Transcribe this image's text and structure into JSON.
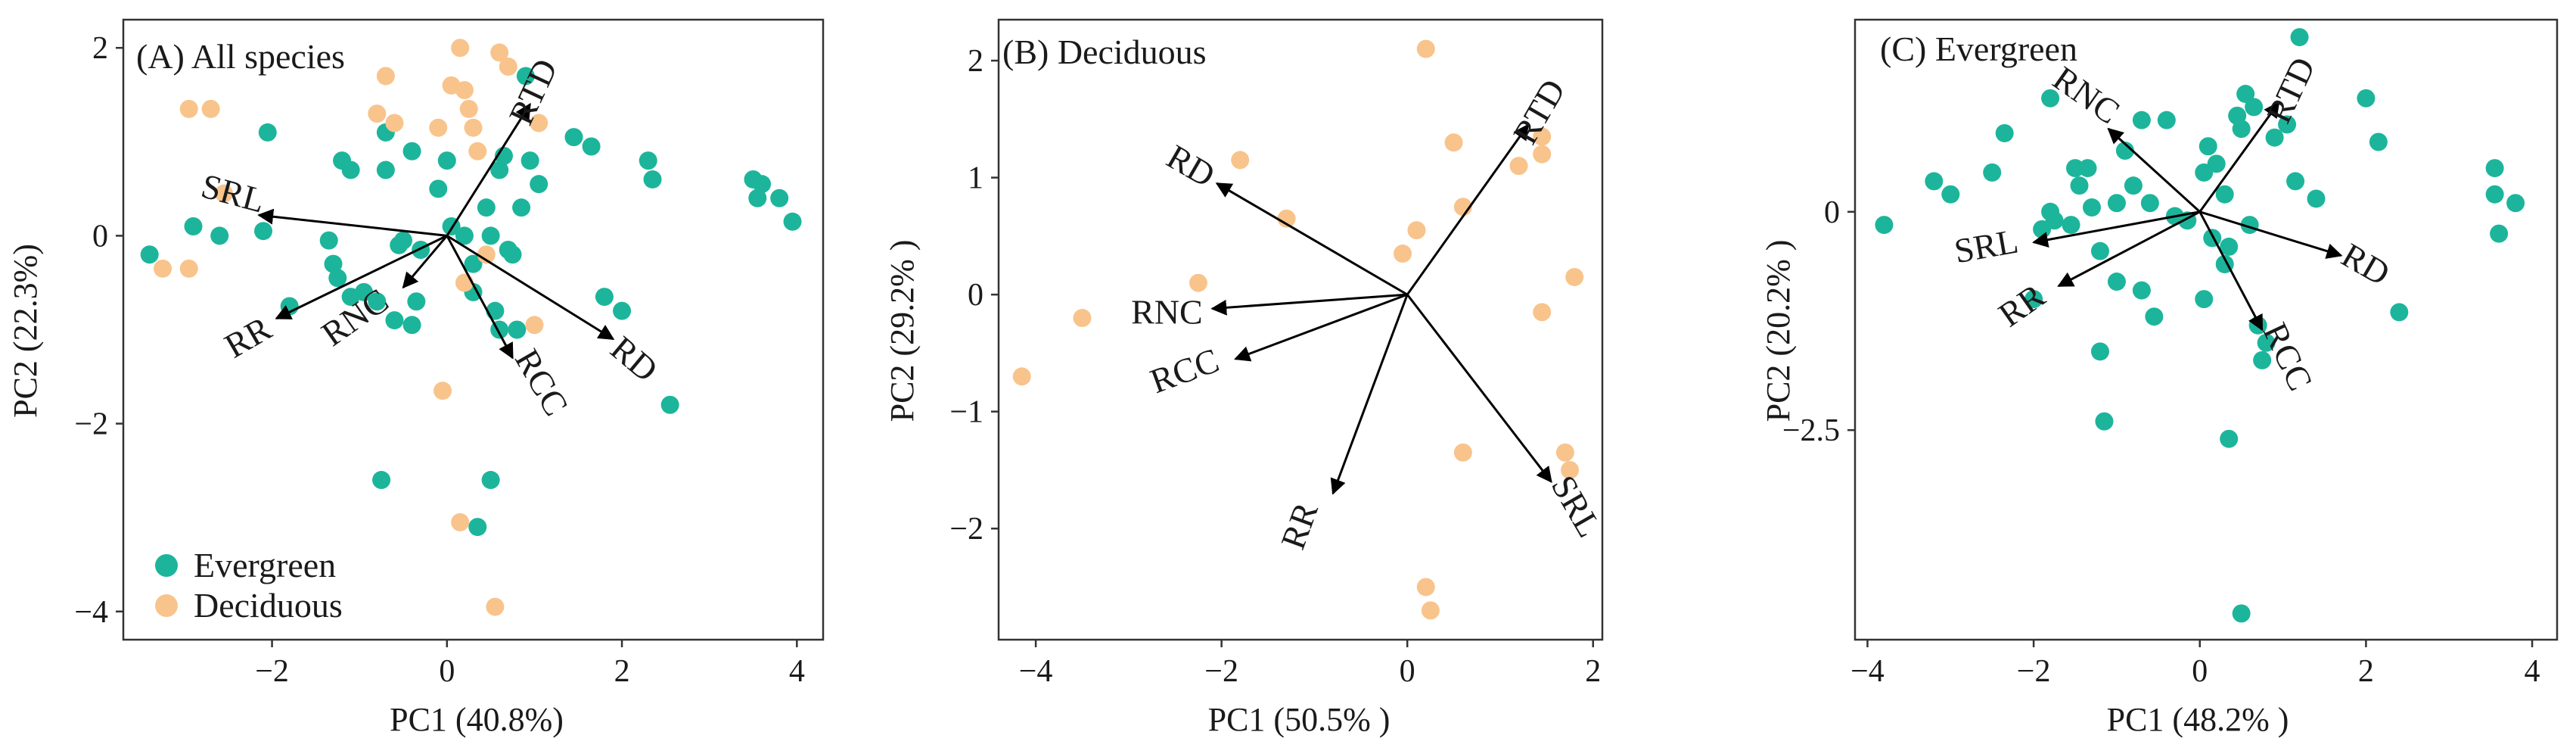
{
  "colors": {
    "evergreen": "#1cb59b",
    "deciduous": "#f8c48c",
    "axis": "#333333",
    "arrow": "#000000"
  },
  "legend": {
    "items": [
      {
        "label": "Evergreen",
        "color_key": "evergreen"
      },
      {
        "label": "Deciduous",
        "color_key": "deciduous"
      }
    ]
  },
  "chart_data": [
    {
      "type": "scatter",
      "subtype": "pca-biplot",
      "title": "(A) All species",
      "xlabel": "PC1 (40.8%)",
      "ylabel": "PC2 (22.3%)",
      "xlim": [
        -3.7,
        4.3
      ],
      "ylim": [
        -4.3,
        2.3
      ],
      "xticks": [
        -2,
        0,
        2,
        4
      ],
      "yticks": [
        -4,
        -2,
        0,
        2
      ],
      "legend_position": "bottom-left",
      "series": [
        {
          "name": "Evergreen",
          "color_key": "evergreen",
          "points": [
            [
              -3.4,
              -0.2
            ],
            [
              -2.9,
              0.1
            ],
            [
              -2.6,
              0.0
            ],
            [
              -2.05,
              1.1
            ],
            [
              -2.1,
              0.05
            ],
            [
              -1.8,
              -0.75
            ],
            [
              -1.35,
              -0.05
            ],
            [
              -1.3,
              -0.3
            ],
            [
              -1.25,
              -0.45
            ],
            [
              -1.1,
              -0.65
            ],
            [
              -1.2,
              0.8
            ],
            [
              -1.1,
              0.7
            ],
            [
              -0.95,
              -0.6
            ],
            [
              -0.8,
              -0.7
            ],
            [
              -0.7,
              0.7
            ],
            [
              -0.6,
              -0.9
            ],
            [
              -0.55,
              -0.1
            ],
            [
              -0.5,
              -0.05
            ],
            [
              -0.4,
              -0.95
            ],
            [
              -0.35,
              -0.7
            ],
            [
              -0.3,
              -0.15
            ],
            [
              -0.7,
              1.1
            ],
            [
              -0.4,
              0.9
            ],
            [
              -0.75,
              -2.6
            ],
            [
              -0.1,
              0.5
            ],
            [
              0.0,
              0.8
            ],
            [
              0.05,
              0.1
            ],
            [
              0.2,
              0.0
            ],
            [
              0.3,
              -0.3
            ],
            [
              0.3,
              -0.6
            ],
            [
              0.35,
              -3.1
            ],
            [
              0.45,
              0.3
            ],
            [
              0.5,
              0.0
            ],
            [
              0.55,
              -0.8
            ],
            [
              0.6,
              -1.0
            ],
            [
              0.6,
              0.7
            ],
            [
              0.65,
              0.85
            ],
            [
              0.7,
              -0.15
            ],
            [
              0.75,
              -0.2
            ],
            [
              0.8,
              -1.0
            ],
            [
              0.85,
              0.3
            ],
            [
              0.9,
              1.7
            ],
            [
              0.95,
              0.8
            ],
            [
              1.05,
              0.55
            ],
            [
              1.45,
              1.05
            ],
            [
              1.65,
              0.95
            ],
            [
              1.8,
              -0.65
            ],
            [
              2.0,
              -0.8
            ],
            [
              2.3,
              0.8
            ],
            [
              2.35,
              0.6
            ],
            [
              2.55,
              -1.8
            ],
            [
              3.5,
              0.6
            ],
            [
              3.55,
              0.4
            ],
            [
              3.6,
              0.55
            ],
            [
              3.8,
              0.4
            ],
            [
              3.95,
              0.15
            ],
            [
              0.5,
              -2.6
            ]
          ]
        },
        {
          "name": "Deciduous",
          "color_key": "deciduous",
          "points": [
            [
              -3.25,
              -0.35
            ],
            [
              -2.95,
              -0.35
            ],
            [
              -2.95,
              1.35
            ],
            [
              -2.7,
              1.35
            ],
            [
              -2.55,
              0.45
            ],
            [
              -0.7,
              1.7
            ],
            [
              -0.8,
              1.3
            ],
            [
              -0.6,
              1.2
            ],
            [
              -0.1,
              1.15
            ],
            [
              0.05,
              1.6
            ],
            [
              0.15,
              2.0
            ],
            [
              0.2,
              1.55
            ],
            [
              0.25,
              1.35
            ],
            [
              0.3,
              1.15
            ],
            [
              0.35,
              0.9
            ],
            [
              0.6,
              1.95
            ],
            [
              0.7,
              1.8
            ],
            [
              1.05,
              1.2
            ],
            [
              0.45,
              -0.2
            ],
            [
              0.2,
              -0.5
            ],
            [
              1.0,
              -0.95
            ],
            [
              -0.05,
              -1.65
            ],
            [
              0.15,
              -3.05
            ],
            [
              0.55,
              -3.95
            ]
          ]
        }
      ],
      "arrows": [
        {
          "label": "RTD",
          "x": 0.95,
          "y": 1.4
        },
        {
          "label": "SRL",
          "x": -2.15,
          "y": 0.22
        },
        {
          "label": "RR",
          "x": -1.95,
          "y": -0.88
        },
        {
          "label": "RNC",
          "x": -0.5,
          "y": -0.55
        },
        {
          "label": "RCC",
          "x": 0.75,
          "y": -1.3
        },
        {
          "label": "RD",
          "x": 1.9,
          "y": -1.1
        }
      ]
    },
    {
      "type": "scatter",
      "subtype": "pca-biplot",
      "title": "(B) Deciduous",
      "xlabel": "PC1 (50.5% )",
      "ylabel": "PC2 (29.2% )",
      "xlim": [
        -4.4,
        2.1
      ],
      "ylim": [
        -2.95,
        2.35
      ],
      "xticks": [
        -4,
        -2,
        0,
        2
      ],
      "yticks": [
        -2,
        -1,
        0,
        1,
        2
      ],
      "series": [
        {
          "name": "Deciduous",
          "color_key": "deciduous",
          "points": [
            [
              -4.15,
              -0.7
            ],
            [
              -3.5,
              -0.2
            ],
            [
              -2.25,
              0.1
            ],
            [
              -1.8,
              1.15
            ],
            [
              -1.3,
              0.65
            ],
            [
              -0.05,
              0.35
            ],
            [
              0.1,
              0.55
            ],
            [
              0.2,
              2.1
            ],
            [
              0.5,
              1.3
            ],
            [
              0.6,
              0.75
            ],
            [
              0.6,
              -1.35
            ],
            [
              0.2,
              -2.5
            ],
            [
              0.25,
              -2.7
            ],
            [
              1.2,
              1.1
            ],
            [
              1.45,
              1.35
            ],
            [
              1.45,
              1.2
            ],
            [
              1.45,
              -0.15
            ],
            [
              1.8,
              0.15
            ],
            [
              1.7,
              -1.35
            ],
            [
              1.75,
              -1.5
            ]
          ]
        }
      ],
      "arrows": [
        {
          "label": "RTD",
          "x": 1.3,
          "y": 1.45
        },
        {
          "label": "RD",
          "x": -2.05,
          "y": 0.95
        },
        {
          "label": "RNC",
          "x": -2.1,
          "y": -0.12
        },
        {
          "label": "RCC",
          "x": -1.85,
          "y": -0.55
        },
        {
          "label": "RR",
          "x": -0.8,
          "y": -1.7
        },
        {
          "label": "SRL",
          "x": 1.55,
          "y": -1.6
        }
      ]
    },
    {
      "type": "scatter",
      "subtype": "pca-biplot",
      "title": "(C) Evergreen",
      "xlabel": "PC1 (48.2% )",
      "ylabel": "PC2 (20.2% )",
      "xlim": [
        -4.15,
        4.3
      ],
      "ylim": [
        -4.9,
        2.2
      ],
      "xticks": [
        -4,
        -2,
        0,
        2,
        4
      ],
      "yticks": [
        -2.5,
        0
      ],
      "series": [
        {
          "name": "Evergreen",
          "color_key": "evergreen",
          "points": [
            [
              -3.8,
              -0.15
            ],
            [
              -3.2,
              0.35
            ],
            [
              -3.0,
              0.2
            ],
            [
              -2.5,
              0.45
            ],
            [
              -2.35,
              0.9
            ],
            [
              -1.9,
              -0.2
            ],
            [
              -1.75,
              -0.1
            ],
            [
              -1.8,
              0.0
            ],
            [
              -1.8,
              1.3
            ],
            [
              -1.55,
              -0.15
            ],
            [
              -1.5,
              0.5
            ],
            [
              -1.45,
              0.3
            ],
            [
              -1.35,
              0.5
            ],
            [
              -1.3,
              0.05
            ],
            [
              -1.2,
              -0.45
            ],
            [
              -1.2,
              -1.6
            ],
            [
              -1.15,
              -2.4
            ],
            [
              -1.0,
              -0.8
            ],
            [
              -1.0,
              0.1
            ],
            [
              -0.9,
              0.7
            ],
            [
              -0.8,
              0.3
            ],
            [
              -0.7,
              1.05
            ],
            [
              -0.7,
              -0.9
            ],
            [
              -0.6,
              0.1
            ],
            [
              -0.55,
              -1.2
            ],
            [
              -0.4,
              1.05
            ],
            [
              -0.3,
              -0.05
            ],
            [
              -0.15,
              -0.1
            ],
            [
              0.05,
              0.45
            ],
            [
              0.05,
              -1.0
            ],
            [
              0.1,
              0.75
            ],
            [
              0.15,
              -0.3
            ],
            [
              0.2,
              0.55
            ],
            [
              0.3,
              -0.6
            ],
            [
              0.35,
              -2.6
            ],
            [
              0.35,
              -0.4
            ],
            [
              0.45,
              1.1
            ],
            [
              0.5,
              0.95
            ],
            [
              0.55,
              1.35
            ],
            [
              0.6,
              -0.15
            ],
            [
              0.65,
              1.2
            ],
            [
              0.7,
              -1.3
            ],
            [
              0.75,
              -1.7
            ],
            [
              0.8,
              -1.5
            ],
            [
              0.9,
              0.85
            ],
            [
              1.05,
              1.0
            ],
            [
              1.15,
              0.35
            ],
            [
              1.2,
              2.0
            ],
            [
              1.4,
              0.15
            ],
            [
              2.0,
              1.3
            ],
            [
              2.15,
              0.8
            ],
            [
              2.4,
              -1.15
            ],
            [
              3.55,
              0.5
            ],
            [
              3.55,
              0.2
            ],
            [
              3.8,
              0.1
            ],
            [
              3.6,
              -0.25
            ],
            [
              0.5,
              -4.6
            ],
            [
              -2.0,
              -1.0
            ],
            [
              0.3,
              0.2
            ]
          ]
        }
      ],
      "arrows": [
        {
          "label": "RTD",
          "x": 0.95,
          "y": 1.25
        },
        {
          "label": "RNC",
          "x": -1.1,
          "y": 0.95
        },
        {
          "label": "SRL",
          "x": -2.0,
          "y": -0.35
        },
        {
          "label": "RR",
          "x": -1.7,
          "y": -0.85
        },
        {
          "label": "RCC",
          "x": 0.75,
          "y": -1.35
        },
        {
          "label": "RD",
          "x": 1.7,
          "y": -0.5
        }
      ]
    }
  ]
}
